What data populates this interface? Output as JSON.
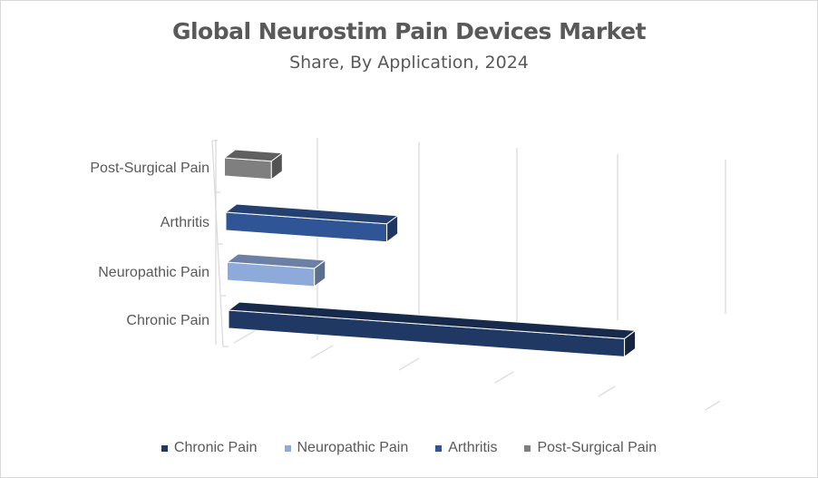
{
  "title": "Global Neurostim Pain Devices Market",
  "subtitle": "Share, By Application, 2024",
  "chart_data": {
    "type": "bar",
    "orientation": "horizontal",
    "style": "3d",
    "title": "Global Neurostim Pain Devices Market",
    "subtitle": "Share, By Application, 2024",
    "categories": [
      "Chronic Pain",
      "Neuropathic Pain",
      "Arthritis",
      "Post-Surgical Pain"
    ],
    "values": [
      59,
      13,
      24,
      7
    ],
    "colors": [
      "#1f3864",
      "#8eaadb",
      "#2f5597",
      "#7f7f7f"
    ],
    "xlim": [
      0,
      75
    ],
    "grid": true,
    "legend": "bottom",
    "legend_entries": [
      "Chronic Pain",
      "Neuropathic Pain",
      "Arthritis",
      "Post-Surgical Pain"
    ]
  }
}
